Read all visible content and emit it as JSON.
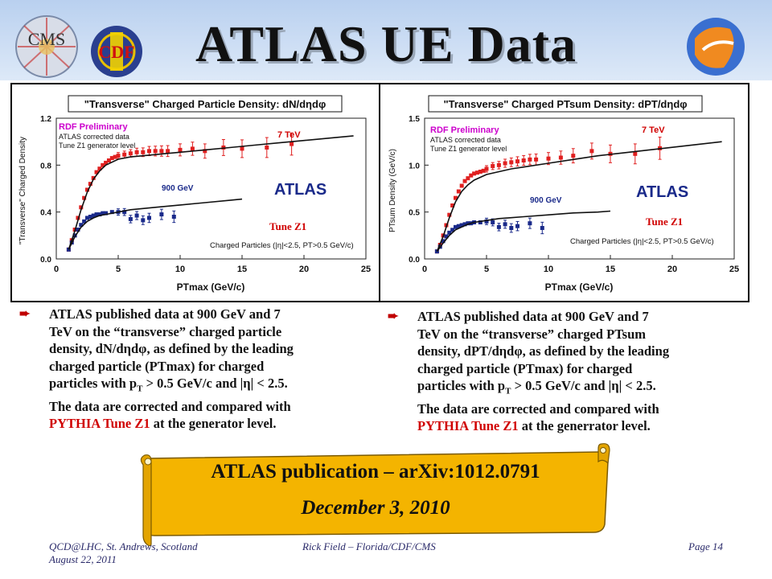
{
  "slide": {
    "title": "ATLAS UE Data",
    "logos": {
      "cms": "CMS",
      "cdf": "CDF"
    }
  },
  "colors": {
    "header_bg": "#c9dcf3",
    "accent_red": "#d00000",
    "data_red": "#e02020",
    "data_blue": "#1a2a8a",
    "scroll_fill": "#f4b400"
  },
  "panels": [
    {
      "chart_title": "\"Transverse\" Charged Particle Density: dN/dηdφ",
      "tag_rdf": "RDF Preliminary",
      "tag_corr1": "ATLAS corrected data",
      "tag_corr2": "Tune Z1 generator level",
      "tag_7tev": "7 TeV",
      "tag_900": "900 GeV",
      "tag_atlas": "ATLAS",
      "tag_tune": "Tune Z1",
      "tag_cuts": "Charged Particles (|η|<2.5, PT>0.5 GeV/c)",
      "ylabel": "\"Transverse\" Charged Density",
      "xlabel": "PTmax (GeV/c)"
    },
    {
      "chart_title": "\"Transverse\" Charged PTsum Density: dPT/dηdφ",
      "tag_rdf": "RDF Preliminary",
      "tag_corr1": "ATLAS corrected data",
      "tag_corr2": "Tune Z1 generator level",
      "tag_7tev": "7 TeV",
      "tag_900": "900 GeV",
      "tag_atlas": "ATLAS",
      "tag_tune": "Tune Z1",
      "tag_cuts": "Charged Particles (|η|<2.5, PT>0.5 GeV/c)",
      "ylabel": "PTsum Density (GeV/c)",
      "xlabel": "PTmax  (GeV/c)"
    }
  ],
  "chart_data": [
    {
      "type": "scatter",
      "title": "\"Transverse\" Charged Particle Density: dN/dηdφ",
      "xlabel": "PTmax (GeV/c)",
      "ylabel": "\"Transverse\" Charged Density",
      "xlim": [
        0,
        25
      ],
      "ylim": [
        0,
        1.2
      ],
      "xticks": [
        "0",
        "5",
        "10",
        "15",
        "20",
        "25"
      ],
      "yticks": [
        "0.0",
        "0.4",
        "0.8",
        "1.2"
      ],
      "grid": false,
      "series": [
        {
          "name": "7 TeV",
          "kind": "points",
          "color": "#e02020",
          "x": [
            1.0,
            1.25,
            1.5,
            1.75,
            2.0,
            2.25,
            2.5,
            2.75,
            3.0,
            3.25,
            3.5,
            3.75,
            4.0,
            4.25,
            4.5,
            4.75,
            5.0,
            5.5,
            6.0,
            6.5,
            7.0,
            7.5,
            8.0,
            8.5,
            9.0,
            10.0,
            11.0,
            12.0,
            13.5,
            15.0,
            17.0,
            19.0
          ],
          "y": [
            0.08,
            0.16,
            0.25,
            0.35,
            0.44,
            0.52,
            0.59,
            0.64,
            0.69,
            0.74,
            0.77,
            0.8,
            0.82,
            0.84,
            0.86,
            0.87,
            0.88,
            0.89,
            0.9,
            0.91,
            0.91,
            0.92,
            0.92,
            0.92,
            0.92,
            0.93,
            0.94,
            0.92,
            0.95,
            0.94,
            0.95,
            0.98
          ]
        },
        {
          "name": "900 GeV",
          "kind": "points",
          "color": "#1a2a8a",
          "x": [
            1.0,
            1.25,
            1.5,
            1.75,
            2.0,
            2.25,
            2.5,
            2.75,
            3.0,
            3.25,
            3.5,
            3.75,
            4.0,
            4.5,
            5.0,
            5.5,
            6.0,
            6.5,
            7.0,
            7.5,
            8.5,
            9.5
          ],
          "y": [
            0.08,
            0.14,
            0.2,
            0.25,
            0.29,
            0.32,
            0.35,
            0.36,
            0.37,
            0.38,
            0.38,
            0.39,
            0.39,
            0.4,
            0.4,
            0.4,
            0.34,
            0.37,
            0.33,
            0.35,
            0.38,
            0.36
          ]
        },
        {
          "name": "7 TeV Tune Z1",
          "kind": "curve",
          "color": "#111111",
          "x": [
            1.0,
            1.5,
            2.0,
            2.5,
            3.0,
            3.5,
            4.0,
            5.0,
            6.0,
            7.0,
            8.0,
            10.0,
            12.0,
            14.0,
            16.0,
            18.0,
            20.0,
            22.0,
            24.0
          ],
          "y": [
            0.08,
            0.24,
            0.42,
            0.57,
            0.68,
            0.75,
            0.8,
            0.85,
            0.87,
            0.88,
            0.89,
            0.91,
            0.93,
            0.95,
            0.97,
            0.99,
            1.01,
            1.03,
            1.05
          ]
        },
        {
          "name": "900 GeV Tune Z1",
          "kind": "curve",
          "color": "#111111",
          "x": [
            1.0,
            1.5,
            2.0,
            2.5,
            3.0,
            3.5,
            4.0,
            5.0,
            6.0,
            7.0,
            8.0,
            10.0,
            12.0,
            14.0,
            15.0
          ],
          "y": [
            0.08,
            0.19,
            0.27,
            0.32,
            0.35,
            0.37,
            0.38,
            0.4,
            0.42,
            0.43,
            0.44,
            0.46,
            0.48,
            0.5,
            0.51
          ]
        }
      ]
    },
    {
      "type": "scatter",
      "title": "\"Transverse\" Charged PTsum Density: dPT/dηdφ",
      "xlabel": "PTmax  (GeV/c)",
      "ylabel": "PTsum Density (GeV/c)",
      "xlim": [
        0,
        25
      ],
      "ylim": [
        0,
        1.5
      ],
      "xticks": [
        "0",
        "5",
        "10",
        "15",
        "20",
        "25"
      ],
      "yticks": [
        "0.0",
        "0.5",
        "1.0",
        "1.5"
      ],
      "grid": false,
      "series": [
        {
          "name": "7 TeV",
          "kind": "points",
          "color": "#e02020",
          "x": [
            1.0,
            1.25,
            1.5,
            1.75,
            2.0,
            2.25,
            2.5,
            2.75,
            3.0,
            3.25,
            3.5,
            3.75,
            4.0,
            4.25,
            4.5,
            4.75,
            5.0,
            5.5,
            6.0,
            6.5,
            7.0,
            7.5,
            8.0,
            8.5,
            9.0,
            10.0,
            11.0,
            12.0,
            13.5,
            15.0,
            17.0,
            19.0
          ],
          "y": [
            0.08,
            0.15,
            0.25,
            0.36,
            0.47,
            0.57,
            0.65,
            0.72,
            0.78,
            0.83,
            0.86,
            0.89,
            0.91,
            0.92,
            0.93,
            0.94,
            0.96,
            0.99,
            1.0,
            1.02,
            1.03,
            1.04,
            1.05,
            1.06,
            1.06,
            1.07,
            1.08,
            1.1,
            1.15,
            1.12,
            1.12,
            1.18
          ]
        },
        {
          "name": "900 GeV",
          "kind": "points",
          "color": "#1a2a8a",
          "x": [
            1.0,
            1.25,
            1.5,
            1.75,
            2.0,
            2.25,
            2.5,
            2.75,
            3.0,
            3.25,
            3.5,
            3.75,
            4.0,
            4.5,
            5.0,
            5.5,
            6.0,
            6.5,
            7.0,
            7.5,
            8.5,
            9.5
          ],
          "y": [
            0.08,
            0.13,
            0.19,
            0.24,
            0.28,
            0.31,
            0.34,
            0.35,
            0.36,
            0.37,
            0.38,
            0.38,
            0.39,
            0.39,
            0.4,
            0.39,
            0.34,
            0.37,
            0.33,
            0.35,
            0.38,
            0.33
          ]
        },
        {
          "name": "7 TeV Tune Z1",
          "kind": "curve",
          "color": "#111111",
          "x": [
            1.0,
            1.5,
            2.0,
            2.5,
            3.0,
            3.5,
            4.0,
            5.0,
            6.0,
            7.0,
            8.0,
            10.0,
            12.0,
            14.0,
            16.0,
            18.0,
            20.0,
            22.0,
            24.0
          ],
          "y": [
            0.08,
            0.24,
            0.44,
            0.61,
            0.72,
            0.79,
            0.84,
            0.9,
            0.93,
            0.96,
            0.98,
            1.02,
            1.06,
            1.1,
            1.13,
            1.16,
            1.19,
            1.22,
            1.25
          ]
        },
        {
          "name": "900 GeV Tune Z1",
          "kind": "curve",
          "color": "#111111",
          "x": [
            1.0,
            1.5,
            2.0,
            2.5,
            3.0,
            3.5,
            4.0,
            5.0,
            6.0,
            7.0,
            8.0,
            10.0,
            12.0,
            14.0,
            15.0
          ],
          "y": [
            0.08,
            0.17,
            0.25,
            0.31,
            0.34,
            0.37,
            0.39,
            0.41,
            0.43,
            0.44,
            0.45,
            0.47,
            0.49,
            0.5,
            0.51
          ]
        }
      ]
    }
  ],
  "bullets": [
    {
      "line1": "ATLAS published data at  900 GeV and 7",
      "line2": "TeV on the “transverse” charged particle",
      "line3": "density, dN/dηdφ, as defined by the leading",
      "line4": "charged particle (PTmax) for charged",
      "line5a": "particles with p",
      "line5sub": "T",
      "line5b": " > 0.5 GeV/c  and |η| < 2.5.",
      "line6": "The data are corrected  and compared with",
      "line7red": "PYTHIA Tune Z1",
      "line7": " at the generator level."
    },
    {
      "line1": "ATLAS published data at  900 GeV and 7",
      "line2": "TeV on the “transverse” charged PTsum",
      "line3": "density, dPT/dηdφ, as defined by the leading",
      "line4": "charged particle (PTmax) for charged",
      "line5a": "particles with p",
      "line5sub": "T",
      "line5b": " > 0.5 GeV/c  and |η| < 2.5.",
      "line6": "The data are corrected  and compared with",
      "line7red": "PYTHIA Tune Z1",
      "line7": " at the generrator level."
    }
  ],
  "publication": {
    "line1": "ATLAS publication – arXiv:1012.0791",
    "line2": "December 3, 2010"
  },
  "footer": {
    "left1": "QCD@LHC, St. Andrews, Scotland",
    "left2": "August 22, 2011",
    "center": "Rick Field – Florida/CDF/CMS",
    "right": "Page 14"
  }
}
